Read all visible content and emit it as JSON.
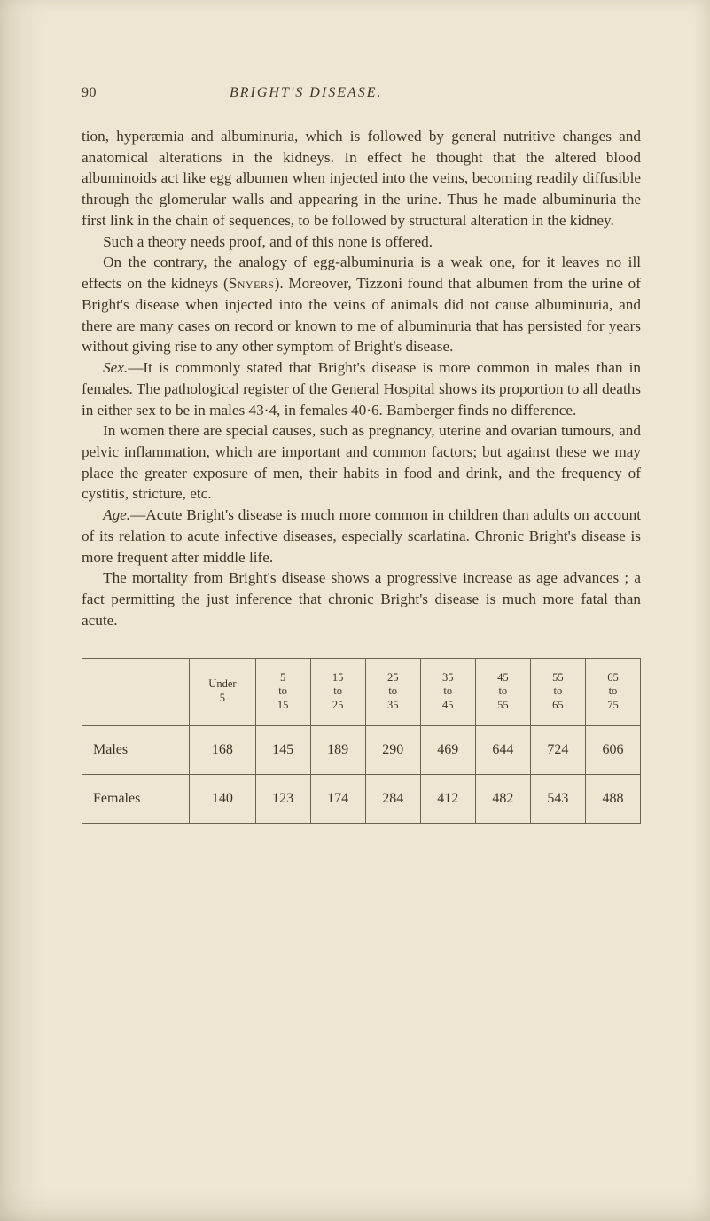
{
  "header": {
    "page_number": "90",
    "running_title": "BRIGHT'S DISEASE."
  },
  "paragraphs": {
    "p1": "tion, hyperæmia and albuminuria, which is followed by general nutritive changes and anatomical alterations in the kidneys. In effect he thought that the altered blood albuminoids act like egg albumen when injected into the veins, becoming readily diffusible through the glomerular walls and appearing in the urine. Thus he made albuminuria the first link in the chain of sequences, to be followed by structural alteration in the kidney.",
    "p2": "Such a theory needs proof, and of this none is offered.",
    "p3a": "On the contrary, the analogy of egg-albuminuria is a weak one, for it leaves no ill effects on the kidneys (",
    "p3_sc": "Snyers",
    "p3b": "). Moreover, Tizzoni found that albumen from the urine of Bright's disease when injected into the veins of animals did not cause albuminuria, and there are many cases on record or known to me of albuminuria that has persisted for years without giving rise to any other symptom of Bright's disease.",
    "p4_lead": "Sex.",
    "p4": "—It is commonly stated that Bright's disease is more common in males than in females. The pathological register of the General Hospital shows its proportion to all deaths in either sex to be in males 43·4, in females 40·6. Bamberger finds no difference.",
    "p5": "In women there are special causes, such as pregnancy, uterine and ovarian tumours, and pelvic inflammation, which are important and common factors; but against these we may place the greater exposure of men, their habits in food and drink, and the frequency of cystitis, stricture, etc.",
    "p6_lead": "Age.",
    "p6": "—Acute Bright's disease is much more common in children than adults on account of its relation to acute infective diseases, especially scarlatina. Chronic Bright's disease is more frequent after middle life.",
    "p7": "The mortality from Bright's disease shows a progressive increase as age advances ; a fact permitting the just inference that chronic Bright's disease is much more fatal than acute."
  },
  "table": {
    "columns": [
      {
        "l1": "Under",
        "l2": "5",
        "l3": ""
      },
      {
        "l1": "5",
        "l2": "to",
        "l3": "15"
      },
      {
        "l1": "15",
        "l2": "to",
        "l3": "25"
      },
      {
        "l1": "25",
        "l2": "to",
        "l3": "35"
      },
      {
        "l1": "35",
        "l2": "to",
        "l3": "45"
      },
      {
        "l1": "45",
        "l2": "to",
        "l3": "55"
      },
      {
        "l1": "55",
        "l2": "to",
        "l3": "65"
      },
      {
        "l1": "65",
        "l2": "to",
        "l3": "75"
      }
    ],
    "rows": [
      {
        "label": "Males",
        "values": [
          "168",
          "145",
          "189",
          "290",
          "469",
          "644",
          "724",
          "606"
        ]
      },
      {
        "label": "Females",
        "values": [
          "140",
          "123",
          "174",
          "284",
          "412",
          "482",
          "543",
          "488"
        ]
      }
    ]
  }
}
